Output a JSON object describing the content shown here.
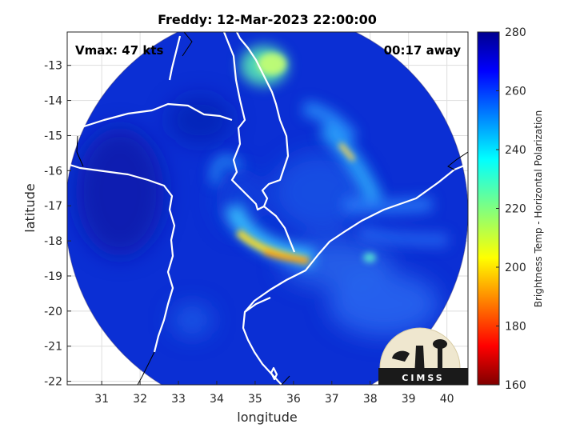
{
  "chart_data": {
    "type": "heatmap",
    "title": "Freddy: 12-Mar-2023 22:00:00",
    "xlabel": "longitude",
    "ylabel": "latitude",
    "xlim": [
      30.1,
      40.55
    ],
    "ylim": [
      -22.1,
      -12.05
    ],
    "x_ticks": [
      "31",
      "32",
      "33",
      "34",
      "35",
      "36",
      "37",
      "38",
      "39",
      "40"
    ],
    "x_tick_values": [
      31,
      32,
      33,
      34,
      35,
      36,
      37,
      38,
      39,
      40
    ],
    "y_ticks": [
      "-13",
      "-14",
      "-15",
      "-16",
      "-17",
      "-18",
      "-19",
      "-20",
      "-21",
      "-22"
    ],
    "y_tick_values": [
      -13,
      -14,
      -15,
      -16,
      -17,
      -18,
      -19,
      -20,
      -21,
      -22
    ],
    "grid": true,
    "colorbar": {
      "label": "Brightness Temp - Horizontal Polarization",
      "range": [
        160,
        280
      ],
      "ticks": [
        "280",
        "260",
        "240",
        "220",
        "200",
        "180",
        "160"
      ],
      "tick_values": [
        280,
        260,
        240,
        220,
        200,
        180,
        160
      ],
      "colormap": "jet"
    },
    "swath": {
      "center_lon": 35.3,
      "center_lat": -17.2,
      "radius_deg": 5.25
    },
    "features": [
      {
        "name": "main band",
        "lon": 35.9,
        "lat": -18.4,
        "min_temp": 188
      },
      {
        "name": "northeast band",
        "lon": 37.2,
        "lat": -15.2,
        "min_temp": 205
      },
      {
        "name": "north cloud",
        "lon": 35.5,
        "lat": -13.0,
        "min_temp": 230
      }
    ]
  },
  "annotations": {
    "vmax": "Vmax: 47 kts",
    "time_away": "00:17 away"
  },
  "logo": {
    "text": "CIMSS"
  }
}
